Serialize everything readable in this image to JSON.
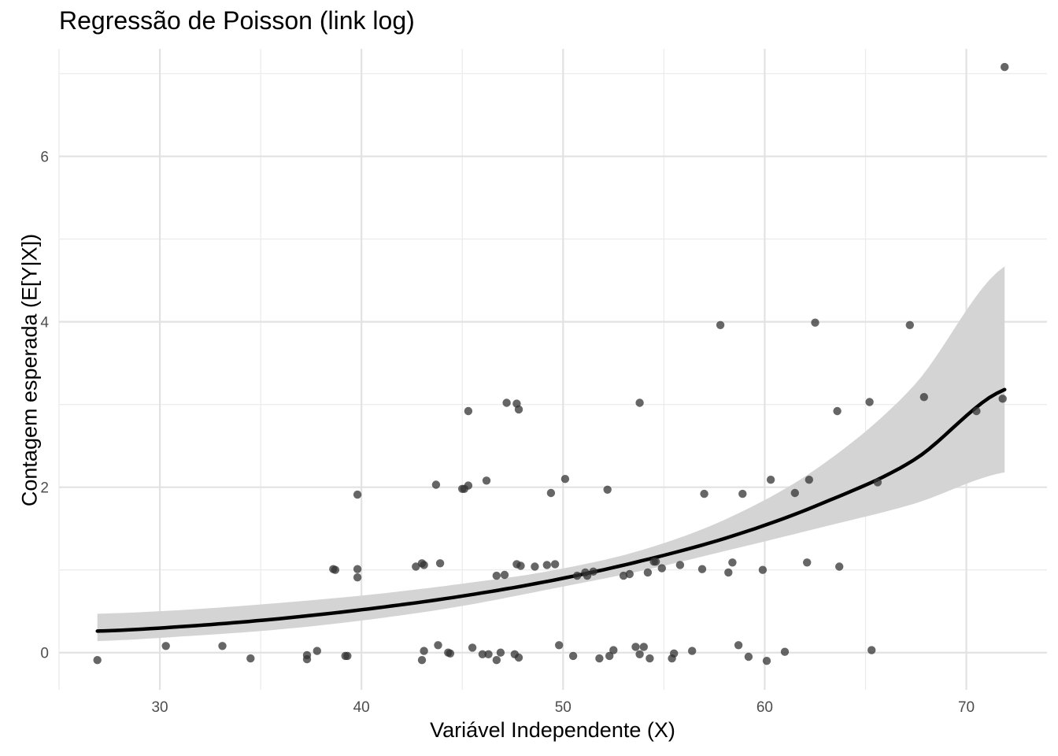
{
  "chart_data": {
    "type": "scatter",
    "title": "Regressão de Poisson (link log)",
    "xlabel": "Variável Independente (X)",
    "ylabel": "Contagem esperada (E[Y|X])",
    "xlim": [
      25,
      74
    ],
    "ylim": [
      -0.45,
      7.3
    ],
    "x_ticks": [
      30,
      40,
      50,
      60,
      70
    ],
    "y_ticks": [
      0,
      2,
      4,
      6
    ],
    "grid": true,
    "series": [
      {
        "kind": "points",
        "color": "#333333",
        "x": [
          26.9,
          30.3,
          33.1,
          34.5,
          37.3,
          37.3,
          37.8,
          39.2,
          39.3,
          43.0,
          43.1,
          43.8,
          44.3,
          44.4,
          45.5,
          46.0,
          46.3,
          46.7,
          46.9,
          47.6,
          47.8,
          49.8,
          50.5,
          51.8,
          52.3,
          52.5,
          53.6,
          53.8,
          54.0,
          54.3,
          55.4,
          55.5,
          56.4,
          58.7,
          59.2,
          60.1,
          61.0,
          65.3,
          38.6,
          38.7,
          39.8,
          39.8,
          42.7,
          43.0,
          43.1,
          43.9,
          46.7,
          47.1,
          47.7,
          47.9,
          48.6,
          49.2,
          49.6,
          50.7,
          51.1,
          51.2,
          51.5,
          53.0,
          53.3,
          54.2,
          54.5,
          54.6,
          54.9,
          55.8,
          56.9,
          58.2,
          58.4,
          59.9,
          62.1,
          63.7,
          39.8,
          43.7,
          45.0,
          45.1,
          45.3,
          46.2,
          49.4,
          50.1,
          52.2,
          57.0,
          58.9,
          60.3,
          61.5,
          62.2,
          65.6,
          45.3,
          47.2,
          47.7,
          47.8,
          53.8,
          63.6,
          65.2,
          67.9,
          70.5,
          71.8,
          57.8,
          62.5,
          67.2,
          71.9
        ],
        "y": [
          -0.09,
          0.08,
          0.08,
          -0.07,
          -0.03,
          -0.08,
          0.02,
          -0.04,
          -0.04,
          -0.09,
          0.02,
          0.09,
          0.0,
          -0.01,
          0.06,
          -0.02,
          -0.02,
          -0.09,
          0.0,
          -0.02,
          -0.06,
          0.09,
          -0.04,
          -0.07,
          -0.04,
          0.03,
          0.07,
          -0.02,
          0.07,
          -0.07,
          -0.07,
          -0.01,
          0.02,
          0.09,
          -0.05,
          -0.1,
          0.01,
          0.03,
          1.01,
          1.0,
          1.01,
          0.91,
          1.04,
          1.08,
          1.06,
          1.08,
          0.93,
          0.94,
          1.07,
          1.05,
          1.04,
          1.06,
          1.07,
          0.93,
          0.97,
          0.93,
          0.98,
          0.93,
          0.95,
          0.97,
          1.1,
          1.1,
          1.02,
          1.06,
          1.01,
          0.97,
          1.09,
          1.0,
          1.09,
          1.04,
          1.91,
          2.03,
          1.98,
          1.98,
          2.02,
          2.08,
          1.93,
          2.1,
          1.97,
          1.92,
          1.92,
          2.09,
          1.93,
          2.09,
          2.06,
          2.92,
          3.02,
          3.01,
          2.94,
          3.02,
          2.92,
          3.03,
          3.09,
          2.92,
          3.07,
          3.96,
          3.99,
          3.96,
          7.08
        ]
      },
      {
        "kind": "fitted_curve",
        "color": "#000000",
        "x": [
          26.9,
          31.4,
          35.9,
          40.4,
          44.9,
          49.4,
          53.9,
          58.4,
          62.9,
          67.4,
          71.9
        ],
        "y": [
          0.26,
          0.32,
          0.41,
          0.53,
          0.68,
          0.87,
          1.11,
          1.41,
          1.81,
          2.33,
          3.18
        ]
      },
      {
        "kind": "confidence_band",
        "color": "#d4d4d4",
        "x": [
          26.9,
          31.4,
          35.9,
          40.4,
          44.9,
          49.4,
          53.9,
          58.4,
          62.9,
          67.4,
          71.9
        ],
        "lower": [
          0.14,
          0.2,
          0.28,
          0.4,
          0.56,
          0.77,
          0.99,
          1.25,
          1.52,
          1.8,
          2.18
        ],
        "upper": [
          0.47,
          0.52,
          0.6,
          0.7,
          0.83,
          0.99,
          1.24,
          1.65,
          2.28,
          3.23,
          4.67
        ]
      }
    ]
  }
}
